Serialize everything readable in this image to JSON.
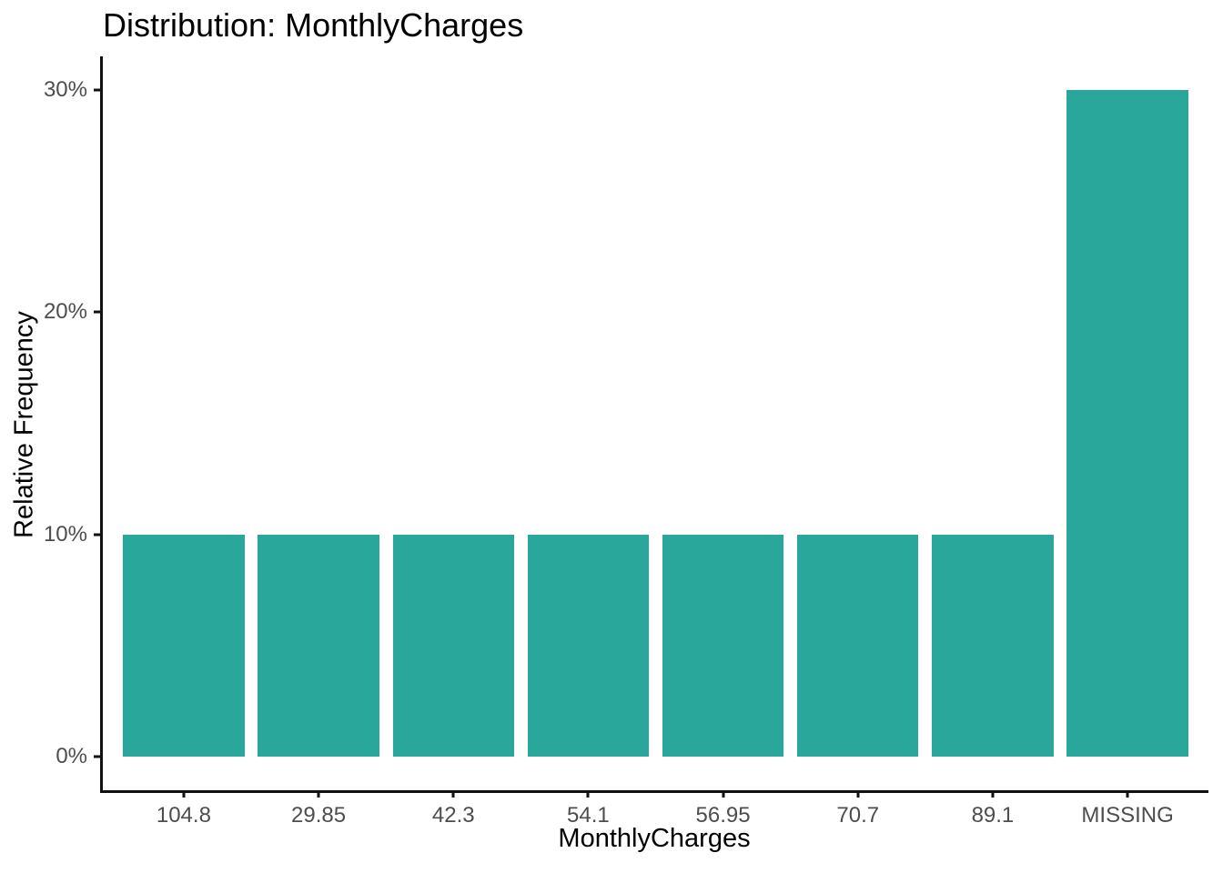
{
  "chart_data": {
    "type": "bar",
    "title": "Distribution: MonthlyCharges",
    "xlabel": "MonthlyCharges",
    "ylabel": "Relative Frequency",
    "categories": [
      "104.8",
      "29.85",
      "42.3",
      "54.1",
      "56.95",
      "70.7",
      "89.1",
      "MISSING"
    ],
    "values": [
      10,
      10,
      10,
      10,
      10,
      10,
      10,
      30
    ],
    "value_unit": "%",
    "yticks": [
      0,
      10,
      20,
      30
    ],
    "ytick_labels": [
      "0%",
      "10%",
      "20%",
      "30%"
    ],
    "ylim": [
      -1.5,
      31.5
    ],
    "bar_color": "#29A79B",
    "grid": false,
    "legend": "none"
  },
  "colors": {
    "bar": "#29A79B",
    "axis_line": "#111111",
    "tick_label": "#4d4d4d",
    "text": "#000000",
    "background": "#ffffff"
  }
}
